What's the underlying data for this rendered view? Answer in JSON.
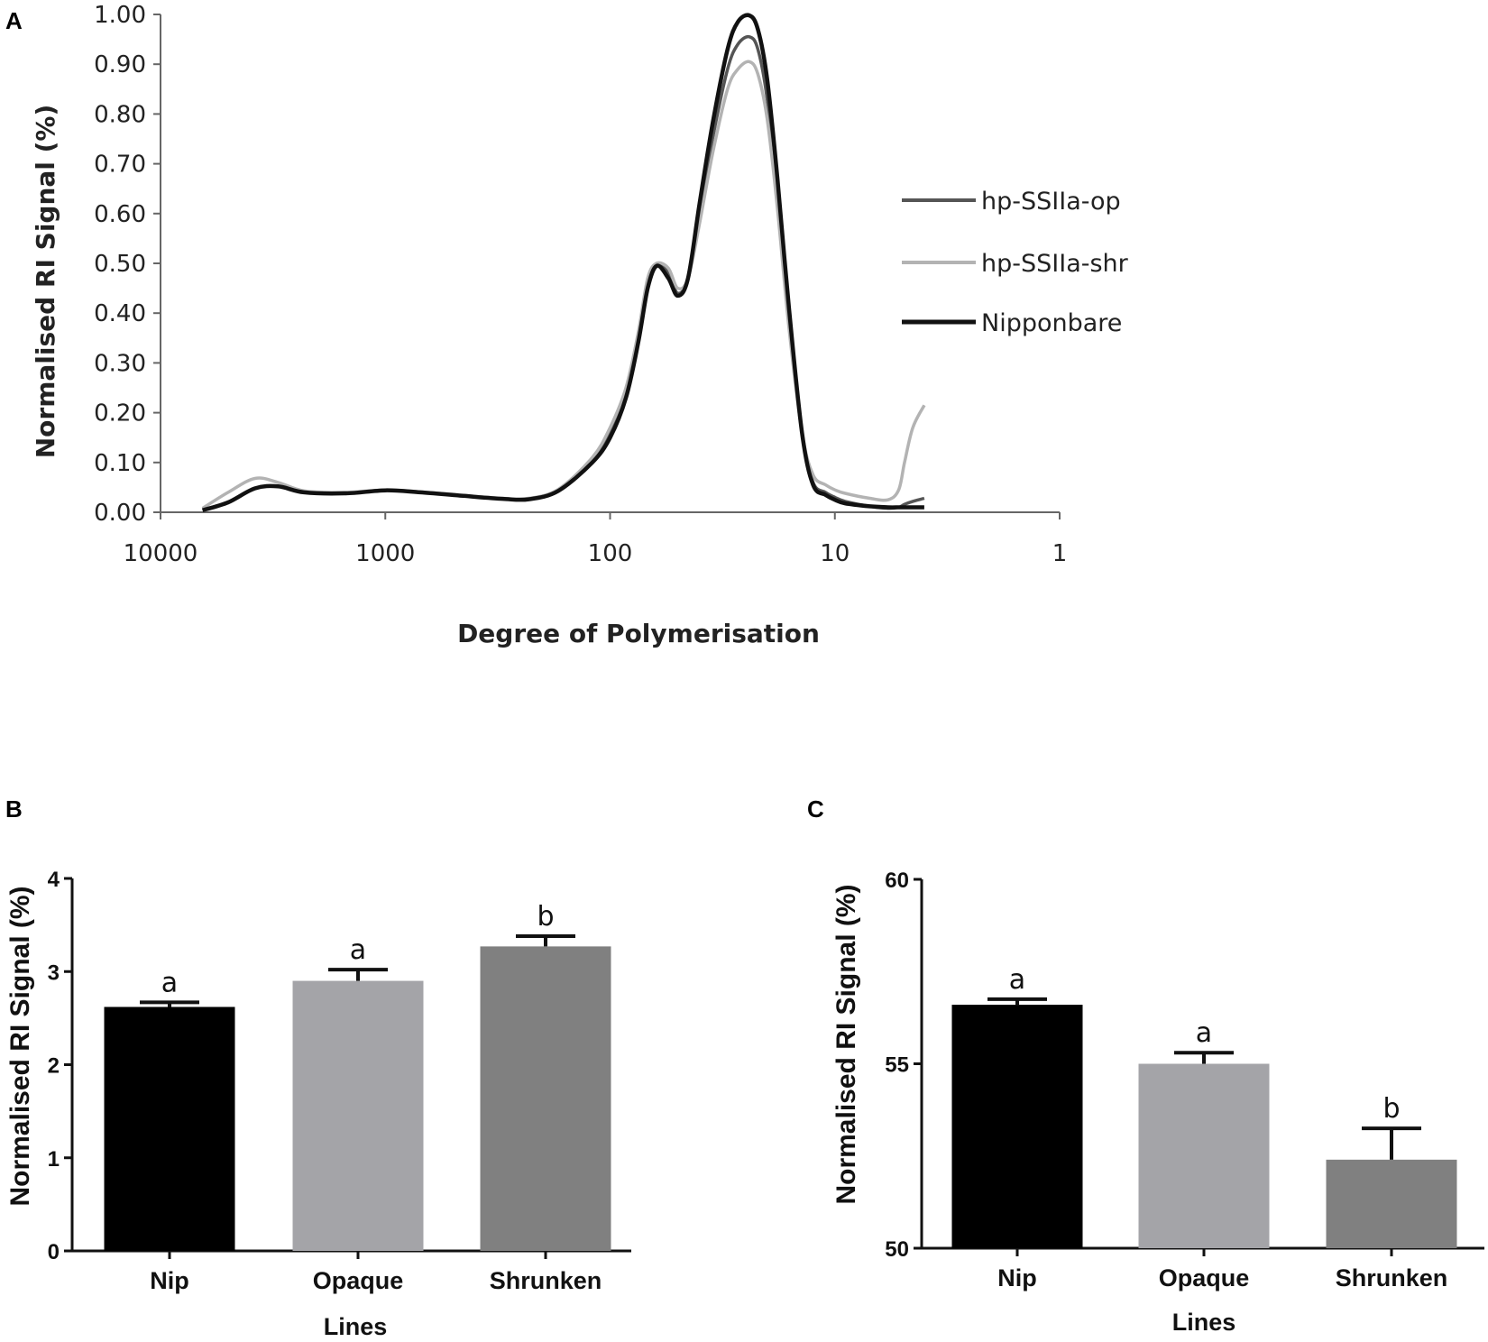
{
  "panel_labels": {
    "a": "A",
    "b": "B",
    "c": "C"
  },
  "chart_data": [
    {
      "id": "A",
      "type": "line",
      "xscale": "log",
      "xreversed": true,
      "xlim": [
        10000,
        1
      ],
      "ylim": [
        0,
        1.0
      ],
      "xticks": [
        10000,
        1000,
        100,
        10,
        1
      ],
      "xtick_labels": [
        "10000",
        "1000",
        "100",
        "10",
        "1"
      ],
      "yticks": [
        0,
        0.1,
        0.2,
        0.3,
        0.4,
        0.5,
        0.6,
        0.7,
        0.8,
        0.9,
        1.0
      ],
      "ytick_labels": [
        "0.00",
        "0.10",
        "0.20",
        "0.30",
        "0.40",
        "0.50",
        "0.60",
        "0.70",
        "0.80",
        "0.90",
        "1.00"
      ],
      "xlabel": "Degree of Polymerisation",
      "ylabel": "Normalised RI Signal (%)",
      "legend_position": "right",
      "series": [
        {
          "name": "hp-SSIIa-op",
          "color": "#555555",
          "x": [
            6500,
            5000,
            3800,
            3000,
            2300,
            1500,
            1000,
            700,
            450,
            300,
            230,
            170,
            120,
            100,
            85,
            75,
            68,
            62,
            55,
            50,
            45,
            40,
            35,
            30,
            27,
            24,
            22,
            20,
            18,
            16,
            14,
            12.5,
            11,
            10,
            9,
            7,
            5.8,
            5.2,
            4.9,
            4.5,
            4.0
          ],
          "y": [
            0.005,
            0.02,
            0.048,
            0.052,
            0.04,
            0.038,
            0.044,
            0.04,
            0.033,
            0.027,
            0.027,
            0.045,
            0.1,
            0.16,
            0.24,
            0.35,
            0.46,
            0.5,
            0.48,
            0.44,
            0.47,
            0.6,
            0.75,
            0.89,
            0.94,
            0.955,
            0.93,
            0.83,
            0.64,
            0.39,
            0.16,
            0.06,
            0.04,
            0.03,
            0.022,
            0.012,
            0.008,
            0.01,
            0.016,
            0.022,
            0.028
          ]
        },
        {
          "name": "hp-SSIIa-shr",
          "color": "#b3b3b3",
          "x": [
            6500,
            5000,
            3800,
            3000,
            2300,
            1500,
            1000,
            700,
            450,
            300,
            230,
            170,
            120,
            100,
            85,
            75,
            68,
            62,
            55,
            50,
            45,
            40,
            35,
            30,
            27,
            24,
            22,
            20,
            18,
            16,
            14,
            12.5,
            11,
            10,
            9,
            7,
            5.8,
            5.2,
            4.9,
            4.5,
            4.0
          ],
          "y": [
            0.008,
            0.04,
            0.068,
            0.06,
            0.043,
            0.04,
            0.045,
            0.041,
            0.034,
            0.028,
            0.028,
            0.046,
            0.11,
            0.17,
            0.25,
            0.36,
            0.47,
            0.5,
            0.49,
            0.45,
            0.47,
            0.58,
            0.72,
            0.85,
            0.89,
            0.905,
            0.88,
            0.79,
            0.61,
            0.37,
            0.16,
            0.075,
            0.055,
            0.045,
            0.038,
            0.028,
            0.025,
            0.045,
            0.1,
            0.17,
            0.215
          ]
        },
        {
          "name": "Nipponbare",
          "color": "#111111",
          "x": [
            6500,
            5000,
            3800,
            3000,
            2300,
            1500,
            1000,
            700,
            450,
            300,
            230,
            170,
            120,
            100,
            85,
            75,
            68,
            62,
            55,
            50,
            45,
            40,
            35,
            30,
            27,
            24,
            22,
            20,
            18,
            16,
            14,
            12.5,
            11,
            10,
            9,
            7,
            5.8,
            5.2,
            4.9,
            4.5,
            4.0
          ],
          "y": [
            0.004,
            0.02,
            0.048,
            0.052,
            0.04,
            0.038,
            0.044,
            0.04,
            0.033,
            0.027,
            0.026,
            0.043,
            0.1,
            0.15,
            0.23,
            0.34,
            0.45,
            0.495,
            0.47,
            0.435,
            0.47,
            0.62,
            0.78,
            0.93,
            0.985,
            0.998,
            0.97,
            0.87,
            0.67,
            0.41,
            0.16,
            0.055,
            0.035,
            0.025,
            0.018,
            0.012,
            0.01,
            0.01,
            0.01,
            0.01,
            0.01
          ]
        }
      ]
    },
    {
      "id": "B",
      "type": "bar",
      "categories": [
        "Nip",
        "Opaque",
        "Shrunken"
      ],
      "values": [
        2.62,
        2.9,
        3.27
      ],
      "errors": [
        0.05,
        0.12,
        0.11
      ],
      "colors": [
        "#000000",
        "#a4a4a8",
        "#808080"
      ],
      "significance": [
        "a",
        "a",
        "b"
      ],
      "ylim": [
        0,
        4
      ],
      "yticks": [
        0,
        1,
        2,
        3,
        4
      ],
      "ytick_labels": [
        "0",
        "1",
        "2",
        "3",
        "4"
      ],
      "xlabel": "Lines",
      "ylabel": "Normalised RI Signal (%)"
    },
    {
      "id": "C",
      "type": "bar",
      "categories": [
        "Nip",
        "Opaque",
        "Shrunken"
      ],
      "values": [
        56.6,
        55.0,
        52.4
      ],
      "errors": [
        0.15,
        0.3,
        0.85
      ],
      "colors": [
        "#000000",
        "#a4a4a8",
        "#808080"
      ],
      "significance": [
        "a",
        "a",
        "b"
      ],
      "ylim": [
        50,
        60
      ],
      "yticks": [
        50,
        55,
        60
      ],
      "ytick_labels": [
        "50",
        "55",
        "60"
      ],
      "xlabel": "Lines",
      "ylabel": "Normalised RI Signal (%)"
    }
  ]
}
